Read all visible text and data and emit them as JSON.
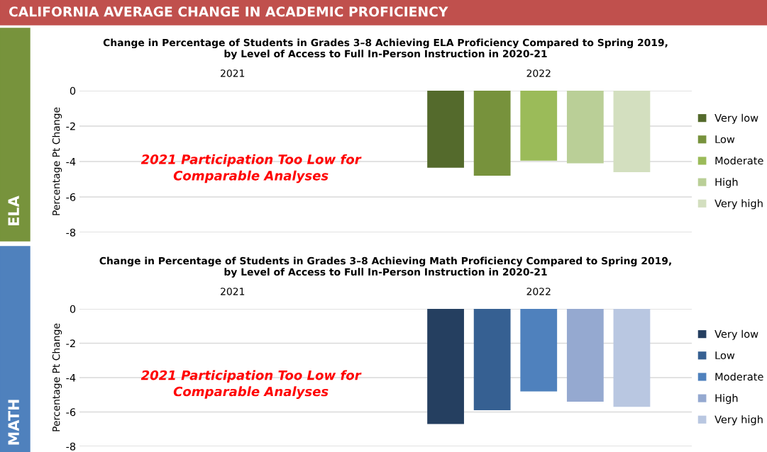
{
  "chart_data": [
    {
      "type": "bar",
      "title": "Change in Percentage of Students in Grades 3–8 Achieving ELA Proficiency Compared to Spring 2019,\nby Level of Access to Full In-Person Instruction in 2020-21",
      "ylabel": "Percentage Pt Change",
      "categories": [
        "2021",
        "2022"
      ],
      "series": [
        {
          "name": "Very low",
          "color": "#546a2c",
          "values": [
            null,
            -4.35
          ]
        },
        {
          "name": "Low",
          "color": "#77923c",
          "values": [
            null,
            -4.8
          ]
        },
        {
          "name": "Moderate",
          "color": "#9bbb59",
          "values": [
            null,
            -3.95
          ]
        },
        {
          "name": "High",
          "color": "#bacf97",
          "values": [
            null,
            -4.1
          ]
        },
        {
          "name": "Very high",
          "color": "#d3dfbf",
          "values": [
            null,
            -4.6
          ]
        }
      ],
      "ylim": [
        -8,
        0
      ],
      "yticks": [
        -8,
        -6,
        -4,
        -2,
        0
      ],
      "grid": "y",
      "legend": "right",
      "annotations": [
        "2021 Participation Too Low for\nComparable Analyses",
        "ELA",
        "CALIFORNIA AVERAGE CHANGE IN ACADEMIC PROFICIENCY"
      ]
    },
    {
      "type": "bar",
      "title": "Change in Percentage of Students in Grades 3–8 Achieving Math Proficiency Compared to Spring 2019,\nby Level of Access to Full In-Person Instruction in 2020-21",
      "ylabel": "Percentage Pt Change",
      "categories": [
        "2021",
        "2022"
      ],
      "series": [
        {
          "name": "Very low",
          "color": "#253f60",
          "values": [
            null,
            -6.7
          ]
        },
        {
          "name": "Low",
          "color": "#366092",
          "values": [
            null,
            -5.9
          ]
        },
        {
          "name": "Moderate",
          "color": "#4f81bd",
          "values": [
            null,
            -4.8
          ]
        },
        {
          "name": "High",
          "color": "#95a9d0",
          "values": [
            null,
            -5.4
          ]
        },
        {
          "name": "Very high",
          "color": "#b9c7e1",
          "values": [
            null,
            -5.7
          ]
        }
      ],
      "ylim": [
        -8,
        0
      ],
      "yticks": [
        -8,
        -6,
        -4,
        -2,
        0
      ],
      "grid": "y",
      "legend": "right",
      "annotations": [
        "2021 Participation Too Low for\nComparable Analyses",
        "MATH"
      ]
    }
  ]
}
